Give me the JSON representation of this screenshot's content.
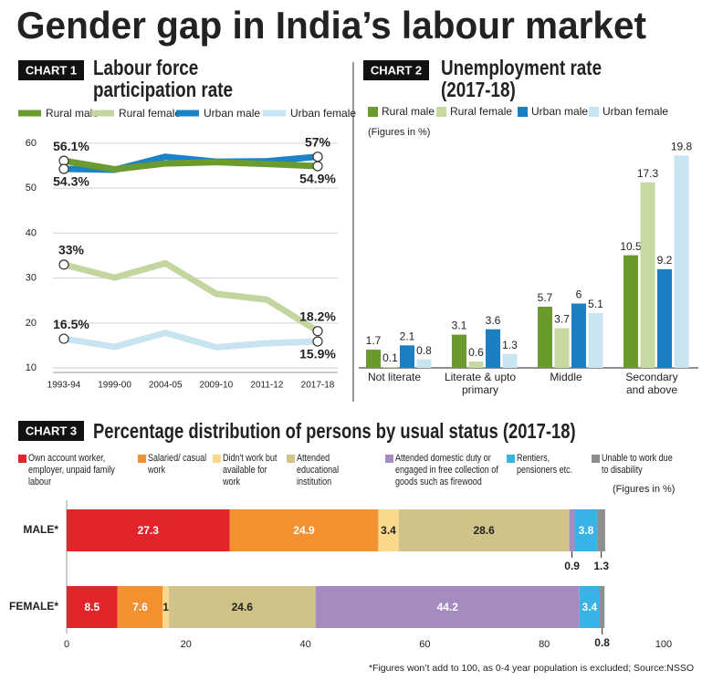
{
  "title": "Gender gap in India’s labour market",
  "chart_data": [
    {
      "label": "CHART 1",
      "type": "line",
      "title": "Labour force participation rate",
      "categories": [
        "1993-94",
        "1999-00",
        "2004-05",
        "2009-10",
        "2011-12",
        "2017-18"
      ],
      "series": [
        {
          "name": "Rural male",
          "color": "#6b9a2f",
          "values": [
            56.1,
            54.2,
            55.5,
            55.8,
            55.4,
            54.9
          ],
          "value_labels": [
            "56.1%",
            null,
            null,
            null,
            null,
            "54.9%"
          ]
        },
        {
          "name": "Rural female",
          "color": "#c4d6a0",
          "values": [
            33,
            30.1,
            33.3,
            26.5,
            25.2,
            18.2
          ],
          "value_labels": [
            "33%",
            null,
            null,
            null,
            null,
            "18.2%"
          ]
        },
        {
          "name": "Urban male",
          "color": "#1b83c6",
          "values": [
            54.3,
            54.1,
            57.0,
            55.9,
            56.0,
            57
          ],
          "value_labels": [
            "54.3%",
            null,
            null,
            null,
            null,
            "57%"
          ]
        },
        {
          "name": "Urban female",
          "color": "#c7e4f0",
          "values": [
            16.5,
            14.7,
            17.8,
            14.6,
            15.5,
            15.9
          ],
          "value_labels": [
            "16.5%",
            null,
            null,
            null,
            null,
            "15.9%"
          ]
        }
      ],
      "ylim": [
        9,
        61
      ],
      "yticks": [
        10,
        20,
        30,
        40,
        50,
        60
      ],
      "grid": true
    },
    {
      "label": "CHART 2",
      "type": "bar",
      "title": "Unemployment rate (2017-18)",
      "subtitle": "(Figures in %)",
      "categories": [
        "Not literate",
        "Literate & upto primary",
        "Middle",
        "Secondary and above"
      ],
      "series": [
        {
          "name": "Rural male",
          "color": "#6a9a2e",
          "values": [
            1.7,
            3.1,
            5.7,
            10.5
          ]
        },
        {
          "name": "Rural female",
          "color": "#c5d9a0",
          "values": [
            0.1,
            0.6,
            3.7,
            17.3
          ]
        },
        {
          "name": "Urban male",
          "color": "#1c7fc2",
          "values": [
            2.1,
            3.6,
            6,
            9.2
          ]
        },
        {
          "name": "Urban female",
          "color": "#c9e5f2",
          "values": [
            0.8,
            1.3,
            5.1,
            19.8
          ]
        }
      ],
      "ylim": [
        0,
        20
      ]
    },
    {
      "label": "CHART 3",
      "type": "stacked_bar",
      "orientation": "horizontal",
      "title": "Percentage distribution of persons by usual status (2017-18)",
      "subtitle": "(Figures in %)",
      "categories": [
        "MALE*",
        "FEMALE*"
      ],
      "series": [
        {
          "name": "Own account worker, employer, unpaid family labour",
          "color": "#e2242b",
          "values": [
            27.3,
            8.5
          ]
        },
        {
          "name": "Salaried/ casual work",
          "color": "#f39130",
          "values": [
            24.9,
            7.6
          ]
        },
        {
          "name": "Didn't work but available for work",
          "color": "#fcd98a",
          "values": [
            3.4,
            1
          ]
        },
        {
          "name": "Attended educational institution",
          "color": "#cfc38a",
          "values": [
            28.6,
            24.6
          ]
        },
        {
          "name": "Attended domestic duty or engaged in free collection of goods such as firewood",
          "color": "#a58bc0",
          "values": [
            0.9,
            44.2
          ]
        },
        {
          "name": "Rentiers, pensioners etc.",
          "color": "#38b3e6",
          "values": [
            3.8,
            3.4
          ]
        },
        {
          "name": "Unable to work due to disability",
          "color": "#8e8e8e",
          "values": [
            1.3,
            0.8
          ]
        }
      ],
      "xlim": [
        0,
        100
      ],
      "xticks": [
        0,
        20,
        40,
        60,
        80,
        100
      ]
    }
  ],
  "footnote": "*Figures won’t add to 100, as 0-4 year population is excluded; Source:NSSO"
}
